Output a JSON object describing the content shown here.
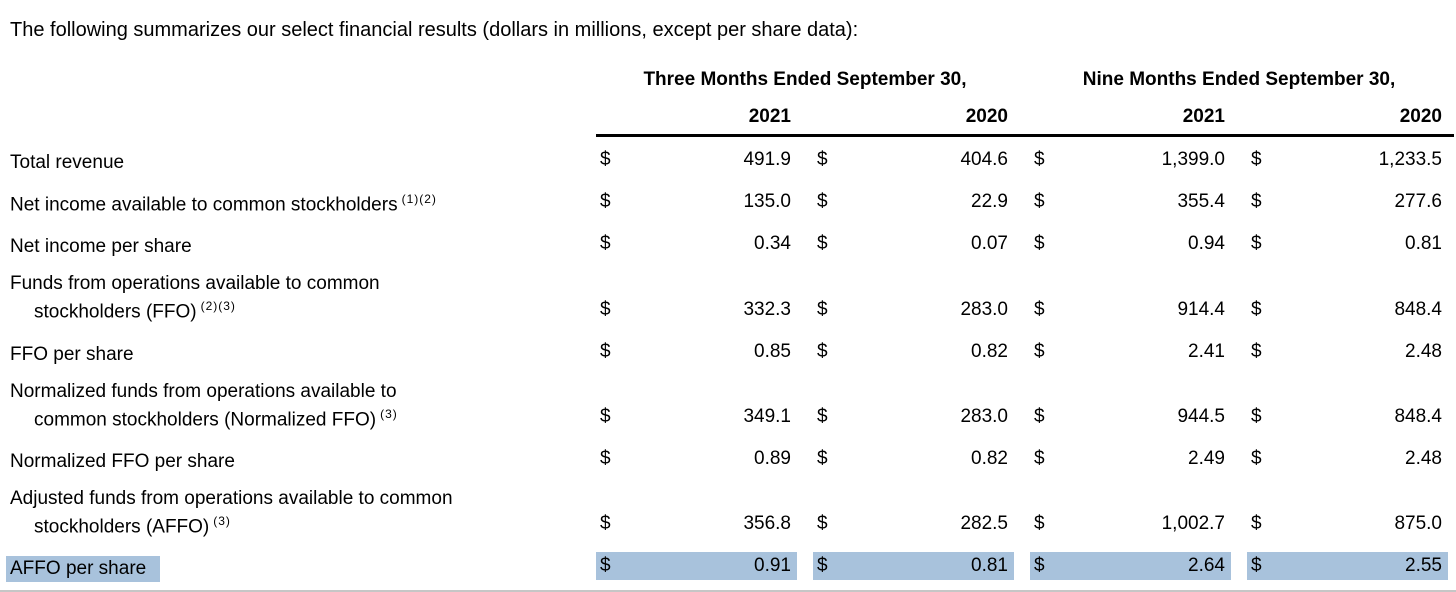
{
  "intro": "The following summarizes our select financial results (dollars in millions, except per share data):",
  "table": {
    "currency_symbol": "$",
    "period_headers": [
      "Three Months Ended September 30,",
      "Nine Months Ended September 30,"
    ],
    "year_headers": [
      "2021",
      "2020",
      "2021",
      "2020"
    ],
    "highlight_color": "#a8c2dc",
    "rows": [
      {
        "lines": [
          "Total revenue"
        ],
        "sup": "",
        "values": [
          "491.9",
          "404.6",
          "1,399.0",
          "1,233.5"
        ],
        "highlight": false
      },
      {
        "lines": [
          "Net income available to common stockholders"
        ],
        "sup": "(1)(2)",
        "values": [
          "135.0",
          "22.9",
          "355.4",
          "277.6"
        ],
        "highlight": false
      },
      {
        "lines": [
          "Net income per share"
        ],
        "sup": "",
        "values": [
          "0.34",
          "0.07",
          "0.94",
          "0.81"
        ],
        "highlight": false
      },
      {
        "lines": [
          "Funds from operations available to common",
          "stockholders (FFO)"
        ],
        "sup": "(2)(3)",
        "values": [
          "332.3",
          "283.0",
          "914.4",
          "848.4"
        ],
        "highlight": false
      },
      {
        "lines": [
          "FFO per share"
        ],
        "sup": "",
        "values": [
          "0.85",
          "0.82",
          "2.41",
          "2.48"
        ],
        "highlight": false
      },
      {
        "lines": [
          "Normalized funds from operations available to",
          "common stockholders (Normalized FFO)"
        ],
        "sup": "(3)",
        "values": [
          "349.1",
          "283.0",
          "944.5",
          "848.4"
        ],
        "highlight": false
      },
      {
        "lines": [
          "Normalized FFO per share"
        ],
        "sup": "",
        "values": [
          "0.89",
          "0.82",
          "2.49",
          "2.48"
        ],
        "highlight": false
      },
      {
        "lines": [
          "Adjusted funds from operations available to common",
          "stockholders (AFFO)"
        ],
        "sup": "(3)",
        "values": [
          "356.8",
          "282.5",
          "1,002.7",
          "875.0"
        ],
        "highlight": false
      },
      {
        "lines": [
          "AFFO per share"
        ],
        "sup": "",
        "values": [
          "0.91",
          "0.81",
          "2.64",
          "2.55"
        ],
        "highlight": true
      }
    ]
  }
}
